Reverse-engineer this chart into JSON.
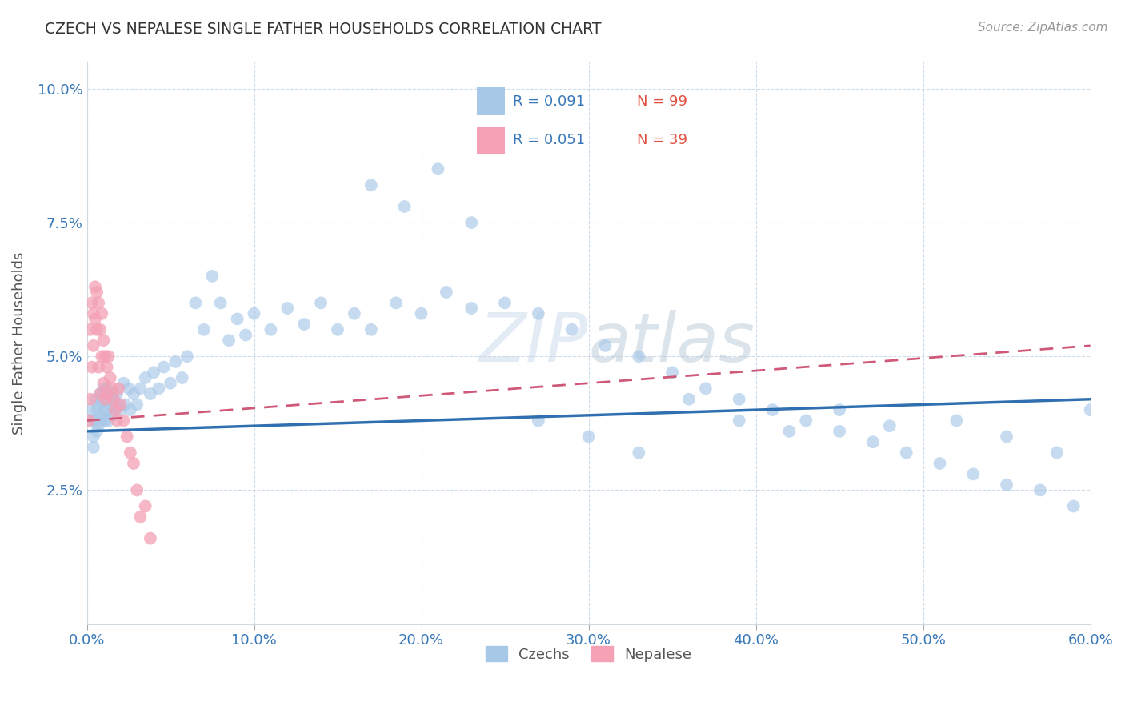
{
  "title": "CZECH VS NEPALESE SINGLE FATHER HOUSEHOLDS CORRELATION CHART",
  "source": "Source: ZipAtlas.com",
  "ylabel": "Single Father Households",
  "xlim": [
    0.0,
    0.6
  ],
  "ylim": [
    0.0,
    0.105
  ],
  "xticklabels": [
    "0.0%",
    "10.0%",
    "20.0%",
    "30.0%",
    "40.0%",
    "50.0%",
    "60.0%"
  ],
  "yticklabels": [
    "",
    "2.5%",
    "5.0%",
    "7.5%",
    "10.0%"
  ],
  "czech_R": "0.091",
  "czech_N": "99",
  "nepalese_R": "0.051",
  "nepalese_N": "39",
  "blue_color": "#a8c8e8",
  "pink_color": "#f4a0b5",
  "blue_line_color": "#3070b0",
  "pink_line_color": "#d05878",
  "watermark": "ZIPatlas",
  "czech_x": [
    0.002,
    0.003,
    0.004,
    0.004,
    0.005,
    0.005,
    0.006,
    0.006,
    0.007,
    0.007,
    0.008,
    0.008,
    0.009,
    0.009,
    0.01,
    0.01,
    0.011,
    0.011,
    0.012,
    0.012,
    0.013,
    0.013,
    0.014,
    0.015,
    0.015,
    0.016,
    0.017,
    0.018,
    0.019,
    0.02,
    0.022,
    0.023,
    0.025,
    0.026,
    0.028,
    0.03,
    0.032,
    0.035,
    0.038,
    0.04,
    0.043,
    0.046,
    0.05,
    0.053,
    0.057,
    0.06,
    0.065,
    0.07,
    0.075,
    0.08,
    0.085,
    0.09,
    0.095,
    0.1,
    0.11,
    0.12,
    0.13,
    0.14,
    0.15,
    0.16,
    0.17,
    0.185,
    0.2,
    0.215,
    0.23,
    0.25,
    0.27,
    0.29,
    0.31,
    0.33,
    0.35,
    0.37,
    0.39,
    0.41,
    0.43,
    0.45,
    0.47,
    0.49,
    0.51,
    0.53,
    0.55,
    0.57,
    0.59,
    0.17,
    0.19,
    0.21,
    0.23,
    0.27,
    0.3,
    0.33,
    0.36,
    0.39,
    0.42,
    0.45,
    0.48,
    0.52,
    0.55,
    0.58,
    0.6
  ],
  "czech_y": [
    0.04,
    0.038,
    0.035,
    0.033,
    0.042,
    0.038,
    0.04,
    0.036,
    0.041,
    0.037,
    0.043,
    0.039,
    0.042,
    0.038,
    0.044,
    0.04,
    0.043,
    0.038,
    0.044,
    0.04,
    0.042,
    0.038,
    0.041,
    0.043,
    0.039,
    0.042,
    0.04,
    0.043,
    0.041,
    0.04,
    0.045,
    0.041,
    0.044,
    0.04,
    0.043,
    0.041,
    0.044,
    0.046,
    0.043,
    0.047,
    0.044,
    0.048,
    0.045,
    0.049,
    0.046,
    0.05,
    0.06,
    0.055,
    0.065,
    0.06,
    0.053,
    0.057,
    0.054,
    0.058,
    0.055,
    0.059,
    0.056,
    0.06,
    0.055,
    0.058,
    0.055,
    0.06,
    0.058,
    0.062,
    0.059,
    0.06,
    0.058,
    0.055,
    0.052,
    0.05,
    0.047,
    0.044,
    0.042,
    0.04,
    0.038,
    0.036,
    0.034,
    0.032,
    0.03,
    0.028,
    0.026,
    0.025,
    0.022,
    0.082,
    0.078,
    0.085,
    0.075,
    0.038,
    0.035,
    0.032,
    0.042,
    0.038,
    0.036,
    0.04,
    0.037,
    0.038,
    0.035,
    0.032,
    0.04
  ],
  "nepalese_x": [
    0.001,
    0.002,
    0.002,
    0.003,
    0.003,
    0.004,
    0.004,
    0.005,
    0.005,
    0.006,
    0.006,
    0.007,
    0.007,
    0.008,
    0.008,
    0.009,
    0.009,
    0.01,
    0.01,
    0.011,
    0.011,
    0.012,
    0.012,
    0.013,
    0.014,
    0.015,
    0.016,
    0.017,
    0.018,
    0.019,
    0.02,
    0.022,
    0.024,
    0.026,
    0.028,
    0.03,
    0.032,
    0.035,
    0.038
  ],
  "nepalese_y": [
    0.038,
    0.055,
    0.042,
    0.06,
    0.048,
    0.058,
    0.052,
    0.063,
    0.057,
    0.062,
    0.055,
    0.06,
    0.048,
    0.055,
    0.043,
    0.05,
    0.058,
    0.053,
    0.045,
    0.05,
    0.042,
    0.048,
    0.043,
    0.05,
    0.046,
    0.044,
    0.042,
    0.04,
    0.038,
    0.044,
    0.041,
    0.038,
    0.035,
    0.032,
    0.03,
    0.025,
    0.02,
    0.022,
    0.016
  ],
  "czech_line_x": [
    0.0,
    0.6
  ],
  "czech_line_y": [
    0.036,
    0.042
  ],
  "nep_line_x": [
    0.0,
    0.6
  ],
  "nep_line_y": [
    0.038,
    0.052
  ]
}
